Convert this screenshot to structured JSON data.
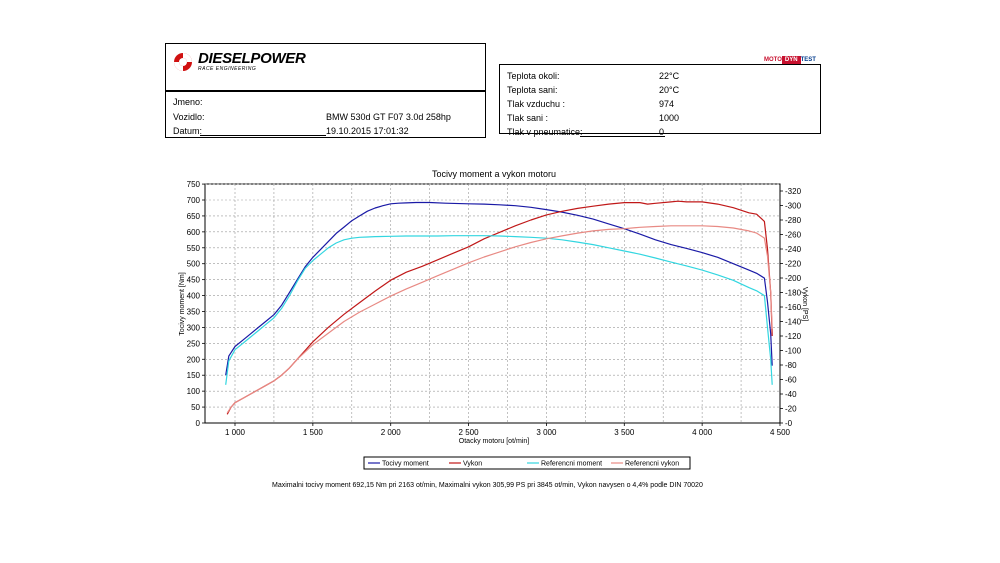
{
  "header": {
    "logo_text": "DIESELPOWER",
    "logo_sub": "RACE ENGINEERING",
    "fields": [
      {
        "label": "Jmeno:",
        "value": ""
      },
      {
        "label": "Vozidlo:",
        "value": "BMW 530d GT F07 3.0d 258hp"
      },
      {
        "label": "Datum:",
        "value": "19.10.2015 17:01:32"
      }
    ]
  },
  "conditions": {
    "badge": [
      "MOTO",
      "DYN",
      "TEST"
    ],
    "rows": [
      {
        "label": "Teplota okoli:",
        "value": "22°C"
      },
      {
        "label": "Teplota sani:",
        "value": "20°C"
      },
      {
        "label": "Tlak vzduchu :",
        "value": "974"
      },
      {
        "label": "Tlak sani :",
        "value": "1000"
      },
      {
        "label": "Tlak v pneumatice:",
        "value": "0"
      }
    ]
  },
  "chart_data": {
    "type": "line",
    "title": "Tocivy moment a vykon motoru",
    "xlabel": "Otacky motoru [ot/min]",
    "ylabel": "Tocivy moment [Nm]",
    "y2label": "Vykon [PS]",
    "xlim": [
      800,
      4500
    ],
    "ylim": [
      0,
      750
    ],
    "y2lim": [
      0,
      330
    ],
    "xticks": [
      1000,
      1500,
      2000,
      2500,
      3000,
      3500,
      4000,
      4500
    ],
    "xtick_labels": [
      "1 000",
      "1 500",
      "2 000",
      "2 500",
      "3 000",
      "3 500",
      "4 000",
      "4 500"
    ],
    "yticks": [
      0,
      50,
      100,
      150,
      200,
      250,
      300,
      350,
      400,
      450,
      500,
      550,
      600,
      650,
      700,
      750
    ],
    "y2ticks": [
      0,
      20,
      40,
      60,
      80,
      100,
      120,
      140,
      160,
      180,
      200,
      220,
      240,
      260,
      280,
      300,
      320
    ],
    "grid": true,
    "series": [
      {
        "name": "Tocivy moment",
        "axis": "left",
        "color": "#1a1aa6",
        "x": [
          940,
          960,
          1000,
          1050,
          1100,
          1150,
          1200,
          1250,
          1300,
          1350,
          1400,
          1450,
          1500,
          1550,
          1600,
          1650,
          1700,
          1750,
          1800,
          1850,
          1900,
          1950,
          2000,
          2050,
          2100,
          2163,
          2250,
          2350,
          2500,
          2600,
          2700,
          2800,
          2900,
          3000,
          3100,
          3200,
          3300,
          3400,
          3500,
          3600,
          3700,
          3800,
          3900,
          4000,
          4100,
          4200,
          4300,
          4350,
          4400,
          4420,
          4440,
          4450
        ],
        "y": [
          150,
          210,
          240,
          260,
          280,
          300,
          320,
          340,
          370,
          410,
          450,
          490,
          520,
          545,
          570,
          595,
          615,
          635,
          650,
          665,
          675,
          682,
          688,
          690,
          691,
          692,
          692,
          690,
          688,
          687,
          685,
          682,
          677,
          670,
          662,
          652,
          640,
          625,
          610,
          593,
          575,
          560,
          548,
          535,
          520,
          500,
          480,
          470,
          455,
          380,
          280,
          180
        ]
      },
      {
        "name": "Vykon",
        "axis": "right",
        "color": "#c01818",
        "x": [
          950,
          975,
          1000,
          1050,
          1100,
          1150,
          1200,
          1250,
          1300,
          1350,
          1400,
          1450,
          1500,
          1600,
          1700,
          1800,
          1900,
          2000,
          2100,
          2200,
          2300,
          2400,
          2500,
          2600,
          2700,
          2800,
          2900,
          3000,
          3100,
          3200,
          3300,
          3400,
          3500,
          3600,
          3650,
          3700,
          3800,
          3845,
          3900,
          4000,
          4100,
          4200,
          4300,
          4350,
          4400,
          4420,
          4440,
          4450
        ],
        "y": [
          12,
          22,
          28,
          34,
          40,
          46,
          52,
          58,
          66,
          76,
          88,
          100,
          112,
          132,
          150,
          166,
          182,
          197,
          208,
          216,
          225,
          234,
          243,
          254,
          263,
          272,
          280,
          287,
          292,
          296,
          299,
          302,
          304,
          304,
          302,
          303,
          305,
          306,
          305,
          305,
          302,
          297,
          290,
          288,
          278,
          240,
          180,
          120
        ]
      },
      {
        "name": "Referencni moment",
        "axis": "left",
        "color": "#33d6e0",
        "x": [
          940,
          960,
          1000,
          1050,
          1100,
          1150,
          1200,
          1250,
          1300,
          1350,
          1400,
          1450,
          1500,
          1550,
          1600,
          1650,
          1700,
          1750,
          1800,
          1850,
          1900,
          2000,
          2100,
          2200,
          2300,
          2400,
          2500,
          2600,
          2700,
          2800,
          2900,
          3000,
          3100,
          3200,
          3300,
          3400,
          3500,
          3600,
          3700,
          3800,
          3900,
          4000,
          4100,
          4200,
          4300,
          4350,
          4400,
          4420,
          4440,
          4450
        ],
        "y": [
          120,
          195,
          230,
          250,
          270,
          290,
          310,
          330,
          360,
          400,
          445,
          485,
          510,
          530,
          550,
          565,
          575,
          580,
          583,
          584,
          585,
          586,
          587,
          587,
          587,
          588,
          588,
          588,
          587,
          585,
          583,
          580,
          575,
          568,
          560,
          550,
          540,
          530,
          518,
          505,
          493,
          480,
          465,
          448,
          425,
          415,
          400,
          300,
          200,
          120
        ]
      },
      {
        "name": "Referencni vykon",
        "axis": "right",
        "color": "#e88a84",
        "x": [
          950,
          975,
          1000,
          1050,
          1100,
          1150,
          1200,
          1250,
          1300,
          1350,
          1400,
          1450,
          1500,
          1600,
          1700,
          1800,
          1900,
          2000,
          2100,
          2200,
          2300,
          2400,
          2500,
          2600,
          2700,
          2800,
          2900,
          3000,
          3100,
          3200,
          3300,
          3400,
          3500,
          3600,
          3700,
          3800,
          3900,
          4000,
          4100,
          4200,
          4300,
          4350,
          4400,
          4420,
          4440,
          4450
        ],
        "y": [
          14,
          22,
          28,
          34,
          40,
          46,
          52,
          58,
          66,
          76,
          88,
          98,
          108,
          124,
          140,
          153,
          164,
          175,
          185,
          194,
          203,
          212,
          221,
          229,
          236,
          243,
          249,
          254,
          258,
          262,
          265,
          267,
          268,
          270,
          271,
          272,
          272,
          272,
          271,
          269,
          265,
          262,
          255,
          230,
          180,
          130
        ]
      }
    ]
  },
  "summary": "Maximalni tocivy moment 692,15 Nm pri 2163 ot/min,  Maximalni vykon 305,99 PS pri 3845 ot/min,  Vykon navysen o 4,4% podle DIN 70020"
}
